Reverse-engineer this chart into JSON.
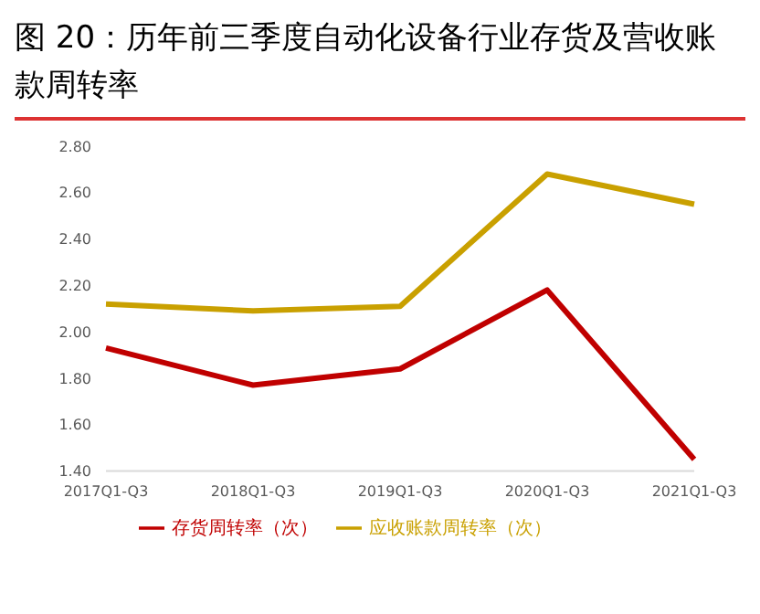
{
  "chart_data": {
    "type": "line",
    "title": "图 20：历年前三季度自动化设备行业存货及营收账款周转率",
    "categories": [
      "2017Q1-Q3",
      "2018Q1-Q3",
      "2019Q1-Q3",
      "2020Q1-Q3",
      "2021Q1-Q3"
    ],
    "series": [
      {
        "name": "存货周转率（次）",
        "color": "#c00000",
        "values": [
          1.93,
          1.77,
          1.84,
          2.18,
          1.45
        ]
      },
      {
        "name": "应收账款周转率（次）",
        "color": "#c9a000",
        "values": [
          2.12,
          2.09,
          2.11,
          2.68,
          2.55
        ]
      }
    ],
    "ylim": [
      1.4,
      2.8
    ],
    "yticks": [
      {
        "value": 1.4,
        "label": "1.40"
      },
      {
        "value": 1.6,
        "label": "1.60"
      },
      {
        "value": 1.8,
        "label": "1.80"
      },
      {
        "value": 2.0,
        "label": "2.00"
      },
      {
        "value": 2.2,
        "label": "2.20"
      },
      {
        "value": 2.4,
        "label": "2.40"
      },
      {
        "value": 2.6,
        "label": "2.60"
      },
      {
        "value": 2.8,
        "label": "2.80"
      }
    ],
    "grid": false,
    "legend": "bottom",
    "marker": "none",
    "line_style": "solid"
  }
}
